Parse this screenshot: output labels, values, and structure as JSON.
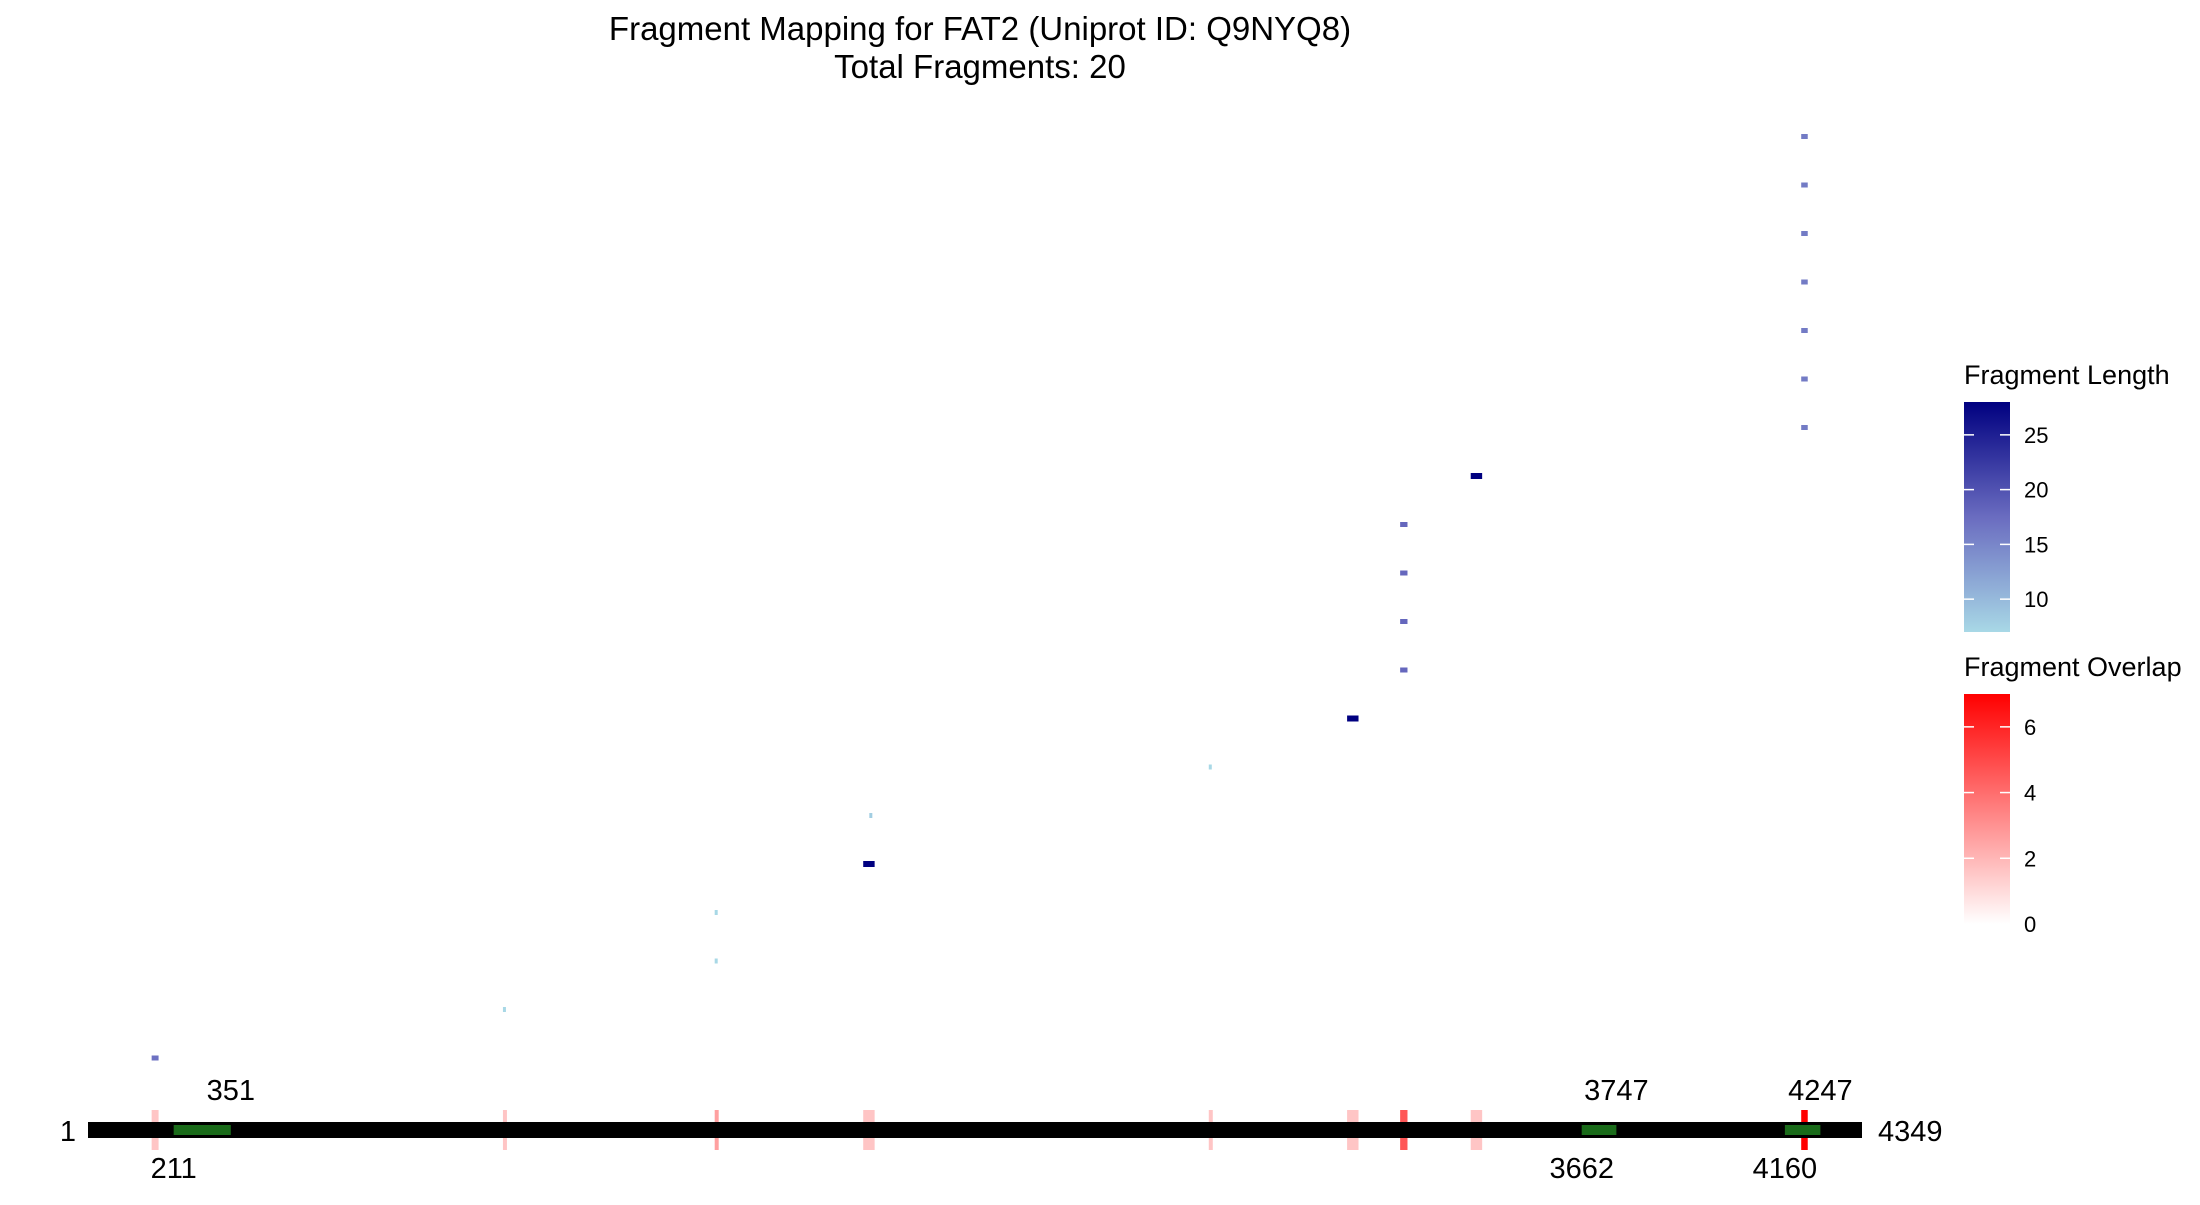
{
  "chart_data": {
    "type": "fragment-map",
    "title": "Fragment Mapping for FAT2 (Uniprot ID: Q9NYQ8)",
    "subtitle": "Total Fragments: 20",
    "protein": {
      "start": 1,
      "end": 4349
    },
    "start_label": "1",
    "end_label": "4349",
    "domains": [
      {
        "start": 211,
        "end": 351,
        "start_label": "211",
        "end_label": "351"
      },
      {
        "start": 3662,
        "end": 3747,
        "start_label": "3662",
        "end_label": "3747"
      },
      {
        "start": 4160,
        "end": 4247,
        "start_label": "4160",
        "end_label": "4247"
      }
    ],
    "fragments": [
      {
        "start": 157,
        "end": 174,
        "length": 17
      },
      {
        "start": 1018,
        "end": 1024,
        "length": 7
      },
      {
        "start": 1537,
        "end": 1543,
        "length": 7
      },
      {
        "start": 1537,
        "end": 1543,
        "length": 7
      },
      {
        "start": 1901,
        "end": 1929,
        "length": 28
      },
      {
        "start": 1916,
        "end": 1923,
        "length": 8
      },
      {
        "start": 2748,
        "end": 2755,
        "length": 7
      },
      {
        "start": 3087,
        "end": 3115,
        "length": 28
      },
      {
        "start": 3217,
        "end": 3235,
        "length": 18
      },
      {
        "start": 3217,
        "end": 3235,
        "length": 18
      },
      {
        "start": 3217,
        "end": 3235,
        "length": 18
      },
      {
        "start": 3217,
        "end": 3235,
        "length": 18
      },
      {
        "start": 3390,
        "end": 3418,
        "length": 28
      },
      {
        "start": 4200,
        "end": 4216,
        "length": 16
      },
      {
        "start": 4200,
        "end": 4216,
        "length": 16
      },
      {
        "start": 4200,
        "end": 4216,
        "length": 16
      },
      {
        "start": 4200,
        "end": 4216,
        "length": 16
      },
      {
        "start": 4200,
        "end": 4216,
        "length": 16
      },
      {
        "start": 4200,
        "end": 4216,
        "length": 16
      },
      {
        "start": 4200,
        "end": 4216,
        "length": 16
      }
    ],
    "legend_length": {
      "title": "Fragment Length",
      "min": 7,
      "max": 28,
      "ticks": [
        10,
        15,
        20,
        25
      ],
      "tick_labels": [
        "10",
        "15",
        "20",
        "25"
      ],
      "color_low": "#a8d8e6",
      "color_mid": "#6a6cc0",
      "color_high": "#000080"
    },
    "legend_overlap": {
      "title": "Fragment Overlap",
      "min": 0,
      "max": 7,
      "ticks": [
        0,
        2,
        4,
        6
      ],
      "tick_labels": [
        "0",
        "2",
        "4",
        "6"
      ],
      "color_low": "#ffffff",
      "color_high": "#ff0000"
    },
    "colors": {
      "protein_bar": "#000000",
      "domain": "#1a6b1a"
    }
  }
}
